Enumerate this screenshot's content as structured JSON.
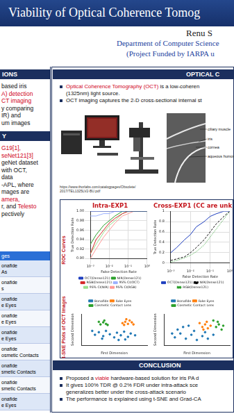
{
  "header": {
    "title": "Viability of Optical Coherence Tomog",
    "author": "Renu S",
    "department": "Department of Computer Science",
    "funding": "(Project Funded by IARPA u"
  },
  "left": {
    "sections": [
      {
        "heading": "IONS",
        "lines": [
          [
            "based iris"
          ],
          [
            {
              "text": "A) detection",
              "color": "#d0021b"
            }
          ],
          [
            {
              "text": "CT imaging",
              "color": "#d0021b"
            }
          ],
          [
            "y comparing"
          ],
          [
            "IR) and"
          ],
          [
            "um images"
          ]
        ]
      },
      {
        "heading": "Y",
        "lines": [
          [
            {
              "text": "G19[1],",
              "color": "#d0021b"
            }
          ],
          [
            {
              "text": "seNet121[3]",
              "color": "#d0021b"
            }
          ],
          [
            "geNet dataset"
          ],
          [
            "with OCT,"
          ],
          [
            "data"
          ],
          [
            "-APL, where"
          ],
          [
            "mages are"
          ],
          [
            {
              "text": "amera,",
              "color": "#d0021b"
            }
          ],
          [
            "r, and ",
            {
              "text": "Telesto",
              "color": "#d0021b"
            }
          ],
          [
            "pectively"
          ]
        ]
      }
    ],
    "table": {
      "header": "ges",
      "rows": [
        [
          "onafide",
          "As"
        ],
        [
          "onafide",
          "s"
        ],
        [
          "onafide",
          "e Eyes"
        ],
        [
          "onafide",
          "e Eyes"
        ],
        [
          "onafide",
          "e Eyes"
        ],
        [
          "onafide",
          "osmetic Contacts"
        ],
        [
          "onafide",
          "smetic Contacts"
        ],
        [
          "onafide",
          "smetic Contacts"
        ],
        [
          "onafide",
          "e Eyes"
        ]
      ]
    }
  },
  "optical": {
    "heading": "OPTICAL C",
    "bullets": [
      [
        [
          {
            "text": "Optical Coherence Tomography (OCT)",
            "color": "#d0021b"
          },
          " is a low-coheren"
        ],
        [
          "(1325nm) light source."
        ]
      ],
      [
        [
          "OCT imaging captures the 2-D cross-sectional internal st"
        ]
      ]
    ],
    "source": [
      "https://www.thorlabs.com/catalogpages/Obsolete/",
      "2017/TEL1325LV2-BU.pdf"
    ],
    "diagram_labels": [
      "ciliary muscle",
      "iris",
      "cornea",
      "aqueous humor"
    ]
  },
  "results": {
    "row_labels": [
      "ROC Curves",
      "t-SNE Plots of OCT Images"
    ]
  },
  "chart_data": [
    {
      "type": "line",
      "title": "Intra-EXP1",
      "xlabel": "False Detection Rate",
      "ylabel": "True Detection Rate",
      "log": "x",
      "grid": true,
      "legend": "bottom",
      "x": [
        0.001,
        0.002,
        0.005,
        0.01,
        0.02,
        0.05,
        0.1,
        0.2,
        0.5,
        1
      ],
      "xlim": [
        0.001,
        1
      ],
      "xticks": [
        {
          "value": 0.001,
          "label": "10⁻³"
        },
        {
          "value": 0.01,
          "label": "10⁻²"
        },
        {
          "value": 0.1,
          "label": "10⁻¹"
        },
        {
          "value": 1,
          "label": "10⁰"
        }
      ],
      "ylim": [
        0.9,
        1
      ],
      "yticks": [
        {
          "value": 0.9,
          "label": "0.90"
        },
        {
          "value": 0.92,
          "label": "0.92"
        },
        {
          "value": 0.94,
          "label": "0.94"
        },
        {
          "value": 0.96,
          "label": "0.96"
        },
        {
          "value": 0.98,
          "label": "0.98"
        },
        {
          "value": 1,
          "label": "1.00"
        }
      ],
      "series": [
        {
          "name": "OCT(Dense121)",
          "color": "#1f3fbf",
          "marker": "none",
          "line_style": "solid",
          "values": [
            1,
            1,
            1,
            1,
            1,
            1,
            1,
            1,
            1,
            1
          ]
        },
        {
          "name": "NIR(Dense121)",
          "color": "#2ca02c",
          "marker": "none",
          "line_style": "solid",
          "values": [
            0.93,
            0.95,
            0.97,
            0.98,
            0.99,
            1,
            1,
            1,
            1,
            1
          ]
        },
        {
          "name": "RGB(Dense121)",
          "color": "#d62728",
          "marker": "none",
          "line_style": "solid",
          "values": [
            0.91,
            0.94,
            0.96,
            0.975,
            0.985,
            0.995,
            1,
            1,
            1,
            1
          ]
        },
        {
          "name": "95% CI(OCT)",
          "color": "#9bb0ff",
          "marker": "none",
          "line_style": "solid",
          "values": [
            0.99,
            0.99,
            0.995,
            0.995,
            1,
            1,
            1,
            1,
            1,
            1
          ]
        },
        {
          "name": "95% CI(NIR)",
          "color": "#98df8a",
          "marker": "none",
          "line_style": "solid",
          "values": [
            0.91,
            0.93,
            0.955,
            0.97,
            0.98,
            0.995,
            1,
            1,
            1,
            1
          ]
        },
        {
          "name": "95% CI(RGB)",
          "color": "#ff9896",
          "marker": "none",
          "line_style": "solid",
          "values": [
            0.9,
            0.92,
            0.945,
            0.96,
            0.975,
            0.99,
            0.995,
            1,
            1,
            1
          ]
        }
      ]
    },
    {
      "type": "line",
      "title": "Cross-EXP1 (CC are unk",
      "xlabel": "False Detection Rate",
      "ylabel": "True Detection Rate",
      "log": "x",
      "grid": true,
      "legend": "bottom",
      "x": [
        0.001,
        0.002,
        0.005,
        0.01,
        0.02,
        0.05,
        0.1,
        0.2,
        0.5,
        1
      ],
      "xlim": [
        0.001,
        1
      ],
      "xticks": [
        {
          "value": 0.001,
          "label": "10⁻³"
        },
        {
          "value": 0.01,
          "label": "10⁻²"
        },
        {
          "value": 0.1,
          "label": "10⁻¹"
        },
        {
          "value": 1,
          "label": "10⁰"
        }
      ],
      "ylim": [
        0,
        1
      ],
      "yticks": [
        0,
        0.2,
        0.4,
        0.6,
        0.8,
        1
      ],
      "series": [
        {
          "name": "OCT(Dense121)",
          "color": "#1f3fbf",
          "marker": "none",
          "line_style": "solid",
          "values": [
            0.2,
            0.3,
            0.45,
            0.55,
            0.7,
            0.8,
            0.9,
            0.95,
            1,
            1
          ]
        },
        {
          "name": "NIR(Dense121)",
          "color": "#000000",
          "marker": "none",
          "line_style": "dashed",
          "values": [
            0.05,
            0.08,
            0.12,
            0.2,
            0.3,
            0.45,
            0.6,
            0.75,
            0.9,
            1
          ]
        },
        {
          "name": "RGB(Dense121)",
          "color": "#2ca02c",
          "marker": "none",
          "line_style": "dotted",
          "values": [
            0.02,
            0.05,
            0.1,
            0.15,
            0.22,
            0.35,
            0.5,
            0.65,
            0.85,
            1
          ]
        }
      ]
    },
    {
      "type": "scatter",
      "xlabel": "First Dimension",
      "ylabel": "Second Dimension",
      "xlim": [
        -60,
        60
      ],
      "ylim": [
        -60,
        60
      ],
      "tick_labels": false,
      "grid": false,
      "legend": "top",
      "series": [
        {
          "name": "Bonafide",
          "color": "#1f77b4",
          "marker": "circle",
          "values": [
            [
              -35,
              -20
            ],
            [
              -28,
              -10
            ],
            [
              -20,
              -25
            ],
            [
              -15,
              -5
            ],
            [
              -8,
              -18
            ],
            [
              0,
              -30
            ],
            [
              5,
              -12
            ],
            [
              12,
              -22
            ],
            [
              18,
              -8
            ],
            [
              25,
              -28
            ],
            [
              30,
              -15
            ],
            [
              38,
              -22
            ],
            [
              -40,
              -5
            ],
            [
              -22,
              -35
            ],
            [
              8,
              -40
            ],
            [
              20,
              -38
            ]
          ]
        },
        {
          "name": "Fake Eyes",
          "color": "#ff7f0e",
          "marker": "circle",
          "values": [
            [
              15,
              25
            ],
            [
              20,
              30
            ],
            [
              25,
              22
            ],
            [
              28,
              35
            ],
            [
              18,
              18
            ],
            [
              32,
              28
            ],
            [
              22,
              40
            ],
            [
              35,
              20
            ]
          ]
        },
        {
          "name": "Cosmetic Contact Lens",
          "color": "#2ca02c",
          "marker": "circle",
          "values": [
            [
              -25,
              20
            ],
            [
              -20,
              28
            ],
            [
              -15,
              22
            ],
            [
              -28,
              30
            ],
            [
              -18,
              35
            ],
            [
              -12,
              18
            ]
          ]
        }
      ]
    },
    {
      "type": "scatter",
      "xlabel": "First Dimension",
      "ylabel": "Second Dimension",
      "xlim": [
        -60,
        60
      ],
      "ylim": [
        -60,
        60
      ],
      "tick_labels": false,
      "grid": false,
      "legend": "top",
      "series": [
        {
          "name": "Bonafide",
          "color": "#1f77b4",
          "marker": "circle",
          "values": [
            [
              -40,
              -30
            ],
            [
              -30,
              -15
            ],
            [
              -20,
              -35
            ],
            [
              -10,
              -20
            ],
            [
              0,
              -40
            ],
            [
              10,
              -25
            ],
            [
              20,
              -35
            ],
            [
              -35,
              0
            ],
            [
              -25,
              10
            ],
            [
              -5,
              -5
            ],
            [
              15,
              -10
            ],
            [
              -15,
              15
            ],
            [
              30,
              -20
            ],
            [
              -45,
              -15
            ]
          ]
        },
        {
          "name": "Fake Eyes",
          "color": "#ff7f0e",
          "marker": "circle",
          "values": [
            [
              10,
              10
            ],
            [
              15,
              20
            ],
            [
              20,
              5
            ],
            [
              25,
              15
            ],
            [
              5,
              25
            ],
            [
              18,
              30
            ],
            [
              12,
              0
            ]
          ]
        },
        {
          "name": "Cosmetic Contact Lens",
          "color": "#2ca02c",
          "marker": "circle",
          "values": [
            [
              35,
              10
            ],
            [
              40,
              20
            ],
            [
              45,
              0
            ],
            [
              38,
              30
            ],
            [
              48,
              15
            ],
            [
              30,
              35
            ]
          ]
        }
      ]
    }
  ],
  "conclusion": {
    "heading": "CONCLUSION",
    "bullets": [
      [
        [
          "Proposed a ",
          {
            "text": "viable",
            "color": "#d0021b"
          },
          " hardware-based solution for iris PA d"
        ]
      ],
      [
        [
          "It gives 100% TDR @ 0.2% FDR under intra-attack sce"
        ],
        [
          "generalizes better under the cross-attack scenario"
        ]
      ],
      [
        [
          "The performance is explained using t-SNE and Grad-CA"
        ]
      ]
    ]
  }
}
